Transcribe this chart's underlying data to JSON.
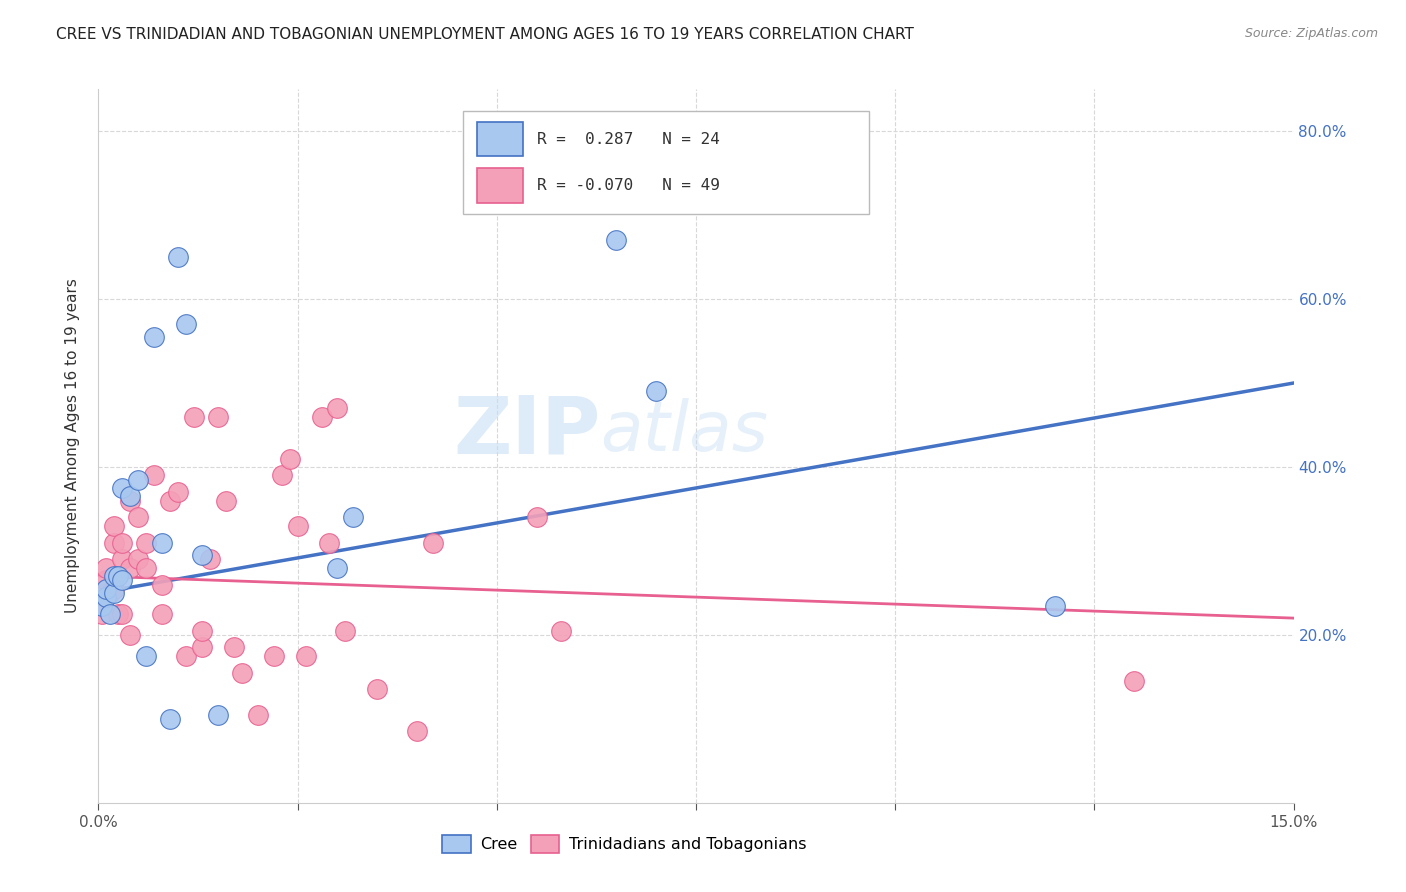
{
  "title": "CREE VS TRINIDADIAN AND TOBAGONIAN UNEMPLOYMENT AMONG AGES 16 TO 19 YEARS CORRELATION CHART",
  "source": "Source: ZipAtlas.com",
  "ylabel": "Unemployment Among Ages 16 to 19 years",
  "xlim": [
    0.0,
    0.15
  ],
  "ylim": [
    0.0,
    0.85
  ],
  "xticks": [
    0.0,
    0.025,
    0.05,
    0.075,
    0.1,
    0.125,
    0.15
  ],
  "yticks_right": [
    0.0,
    0.2,
    0.4,
    0.6,
    0.8
  ],
  "ytick_labels_right": [
    "",
    "20.0%",
    "40.0%",
    "60.0%",
    "80.0%"
  ],
  "cree_R": 0.287,
  "cree_N": 24,
  "tnt_R": -0.07,
  "tnt_N": 49,
  "cree_color": "#a8c8f0",
  "tnt_color": "#f4a0b8",
  "cree_line_color": "#4472c4",
  "tnt_line_color": "#e86090",
  "cree_x": [
    0.0005,
    0.001,
    0.001,
    0.0015,
    0.002,
    0.002,
    0.0025,
    0.003,
    0.003,
    0.004,
    0.005,
    0.006,
    0.007,
    0.008,
    0.009,
    0.01,
    0.011,
    0.013,
    0.015,
    0.03,
    0.032,
    0.065,
    0.07,
    0.12
  ],
  "cree_y": [
    0.235,
    0.245,
    0.255,
    0.225,
    0.25,
    0.27,
    0.27,
    0.265,
    0.375,
    0.365,
    0.385,
    0.175,
    0.555,
    0.31,
    0.1,
    0.65,
    0.57,
    0.295,
    0.105,
    0.28,
    0.34,
    0.67,
    0.49,
    0.235
  ],
  "tnt_x": [
    0.0005,
    0.001,
    0.001,
    0.001,
    0.0015,
    0.002,
    0.002,
    0.002,
    0.0025,
    0.003,
    0.003,
    0.003,
    0.004,
    0.004,
    0.004,
    0.005,
    0.005,
    0.006,
    0.006,
    0.007,
    0.008,
    0.008,
    0.009,
    0.01,
    0.011,
    0.012,
    0.013,
    0.013,
    0.014,
    0.015,
    0.016,
    0.017,
    0.018,
    0.02,
    0.022,
    0.023,
    0.024,
    0.025,
    0.026,
    0.028,
    0.029,
    0.03,
    0.031,
    0.035,
    0.04,
    0.042,
    0.055,
    0.058,
    0.13
  ],
  "tnt_y": [
    0.225,
    0.25,
    0.265,
    0.28,
    0.25,
    0.255,
    0.31,
    0.33,
    0.225,
    0.29,
    0.31,
    0.225,
    0.2,
    0.28,
    0.36,
    0.29,
    0.34,
    0.28,
    0.31,
    0.39,
    0.225,
    0.26,
    0.36,
    0.37,
    0.175,
    0.46,
    0.185,
    0.205,
    0.29,
    0.46,
    0.36,
    0.185,
    0.155,
    0.105,
    0.175,
    0.39,
    0.41,
    0.33,
    0.175,
    0.46,
    0.31,
    0.47,
    0.205,
    0.135,
    0.085,
    0.31,
    0.34,
    0.205,
    0.145
  ],
  "watermark_text": "ZIP",
  "watermark_text2": "atlas",
  "background_color": "#ffffff",
  "grid_color": "#d8d8d8",
  "cree_line_y0": 0.25,
  "cree_line_y1": 0.5,
  "tnt_line_y0": 0.27,
  "tnt_line_y1": 0.22
}
